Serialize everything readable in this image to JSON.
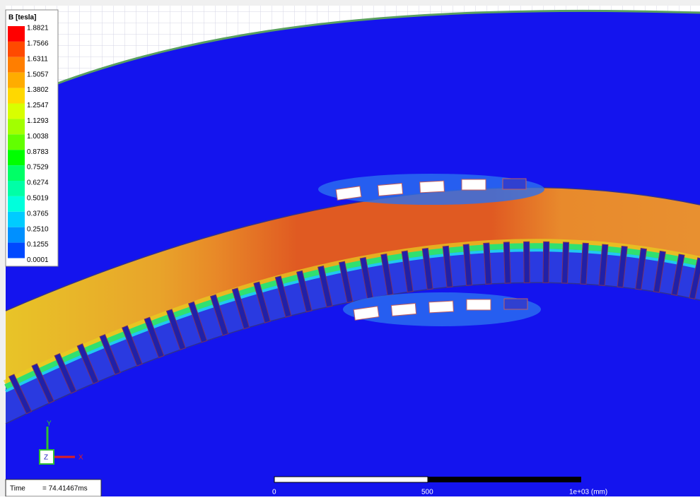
{
  "legend": {
    "title": "B [tesla]",
    "values": [
      "1.8821",
      "1.7566",
      "1.6311",
      "1.5057",
      "1.3802",
      "1.2547",
      "1.1293",
      "1.0038",
      "0.8783",
      "0.7529",
      "0.6274",
      "0.5019",
      "0.3765",
      "0.2510",
      "0.1255",
      "0.0001"
    ],
    "colors": [
      "#ff0000",
      "#ff4a00",
      "#ff7e00",
      "#ffac00",
      "#ffd800",
      "#d8ff00",
      "#a2ff00",
      "#62ff00",
      "#00ff00",
      "#00ff66",
      "#00ffa6",
      "#00ffdc",
      "#00ccff",
      "#0090ff",
      "#0048ff"
    ]
  },
  "axes": {
    "y": "Y",
    "x": "X",
    "z": "Z"
  },
  "time": {
    "label": "Time",
    "value": "= 74.41467ms"
  },
  "scale_bar": {
    "labels": [
      "0",
      "500",
      "1e+03 (mm)"
    ]
  }
}
